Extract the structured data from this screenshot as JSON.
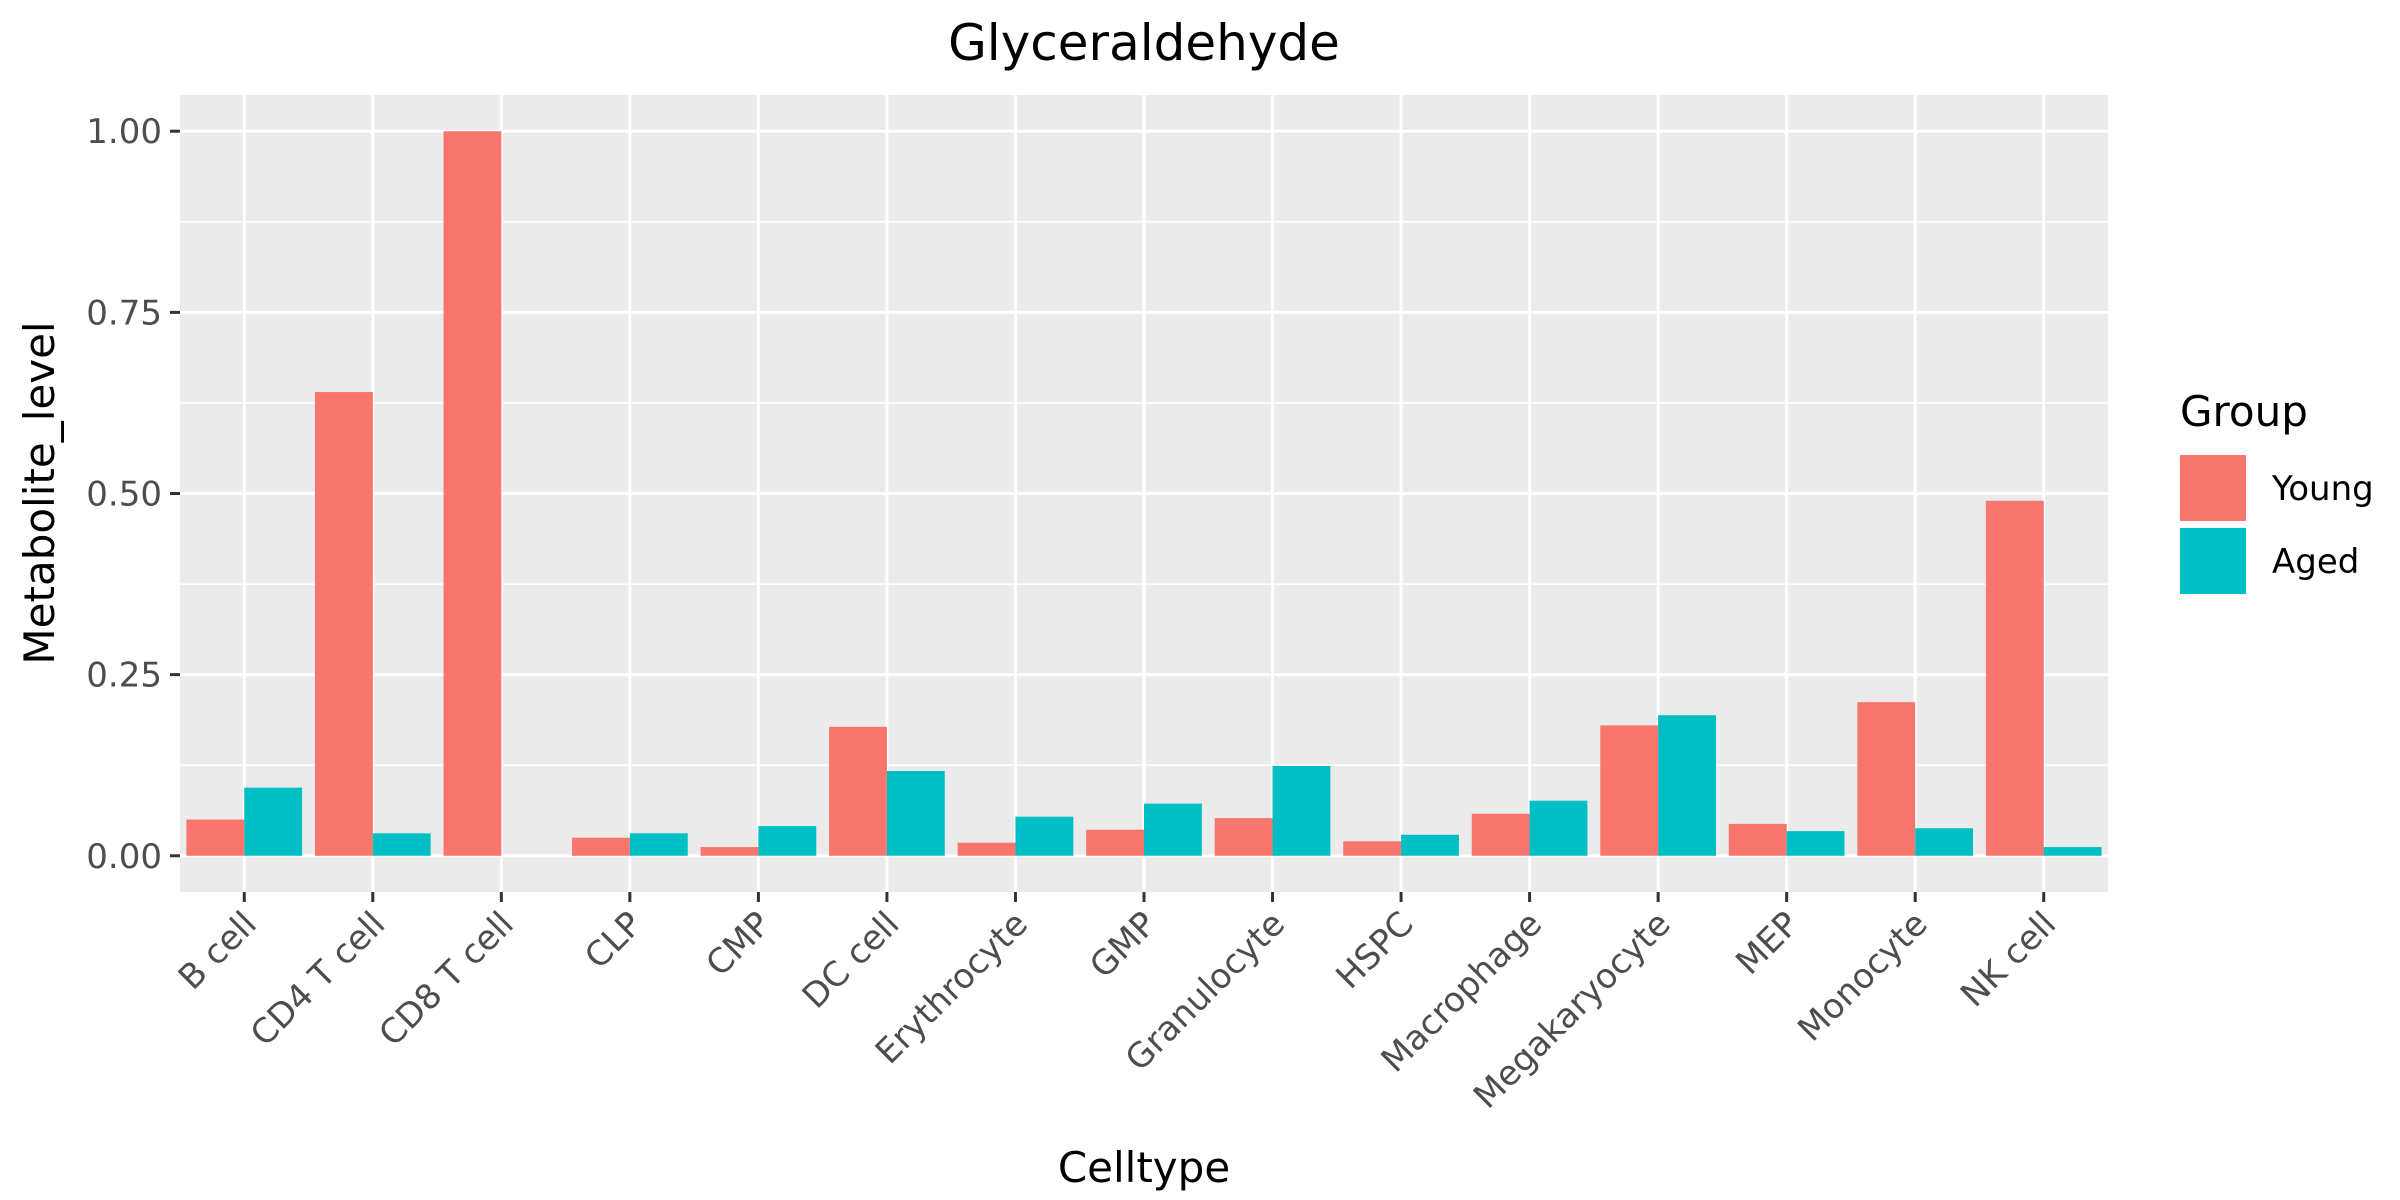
{
  "chart_data": {
    "type": "bar",
    "title": "Glyceraldehyde",
    "xlabel": "Celltype",
    "ylabel": "Metabolite_level",
    "categories": [
      "B cell",
      "CD4 T cell",
      "CD8 T cell",
      "CLP",
      "CMP",
      "DC cell",
      "Erythrocyte",
      "GMP",
      "Granulocyte",
      "HSPC",
      "Macrophage",
      "Megakaryocyte",
      "MEP",
      "Monocyte",
      "NK cell"
    ],
    "series": [
      {
        "name": "Young",
        "color": "#F8766D",
        "values": [
          0.05,
          0.64,
          1.0,
          0.025,
          0.012,
          0.178,
          0.018,
          0.036,
          0.052,
          0.02,
          0.058,
          0.18,
          0.044,
          0.212,
          0.49
        ]
      },
      {
        "name": "Aged",
        "color": "#00BFC4",
        "values": [
          0.094,
          0.031,
          0.0,
          0.031,
          0.041,
          0.117,
          0.054,
          0.072,
          0.124,
          0.029,
          0.076,
          0.194,
          0.034,
          0.038,
          0.012
        ]
      }
    ],
    "ylim": [
      -0.05,
      1.05
    ],
    "yticks": [
      0,
      0.25,
      0.5,
      0.75,
      1.0
    ],
    "ytick_labels": [
      "0.00",
      "0.25",
      "0.50",
      "0.75",
      "1.00"
    ],
    "grid": true,
    "legend": {
      "title": "Group",
      "position": "right"
    },
    "panel_background": "#EBEBEB"
  }
}
